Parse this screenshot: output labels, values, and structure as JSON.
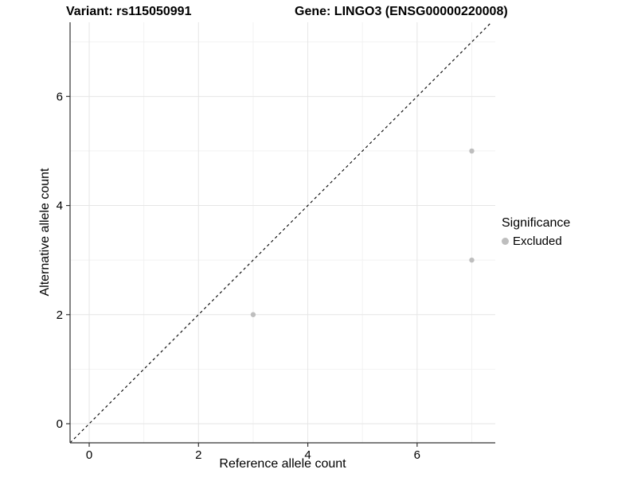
{
  "chart_data": {
    "type": "scatter",
    "title_left": "Variant: rs115050991",
    "title_right": "Gene: LINGO3 (ENSG00000220008)",
    "xlabel": "Reference allele count",
    "ylabel": "Alternative allele count",
    "x_ticks": [
      0,
      2,
      4,
      6
    ],
    "y_ticks": [
      0,
      2,
      4,
      6
    ],
    "x_minor": [
      1,
      3,
      5,
      7
    ],
    "y_minor": [
      1,
      3,
      5,
      7
    ],
    "xlim": [
      -0.35,
      7.43
    ],
    "ylim": [
      -0.35,
      7.36
    ],
    "grid": true,
    "identity_line": {
      "style": "dashed",
      "slope": 1,
      "intercept": 0,
      "color": "#000000"
    },
    "series": [
      {
        "name": "Excluded",
        "color": "#bebebe",
        "points": [
          [
            3,
            2
          ],
          [
            7,
            5
          ],
          [
            7,
            3
          ]
        ]
      }
    ],
    "legend": {
      "position": "right",
      "title": "Significance",
      "entries": [
        {
          "label": "Excluded",
          "color": "#bebebe"
        }
      ]
    },
    "colors": {
      "background": "#ffffff",
      "grid_major": "#e6e6e6",
      "grid_minor": "#f2f2f2",
      "axis_line": "#333333",
      "tick_label": "#000000",
      "point": "#bebebe"
    }
  }
}
